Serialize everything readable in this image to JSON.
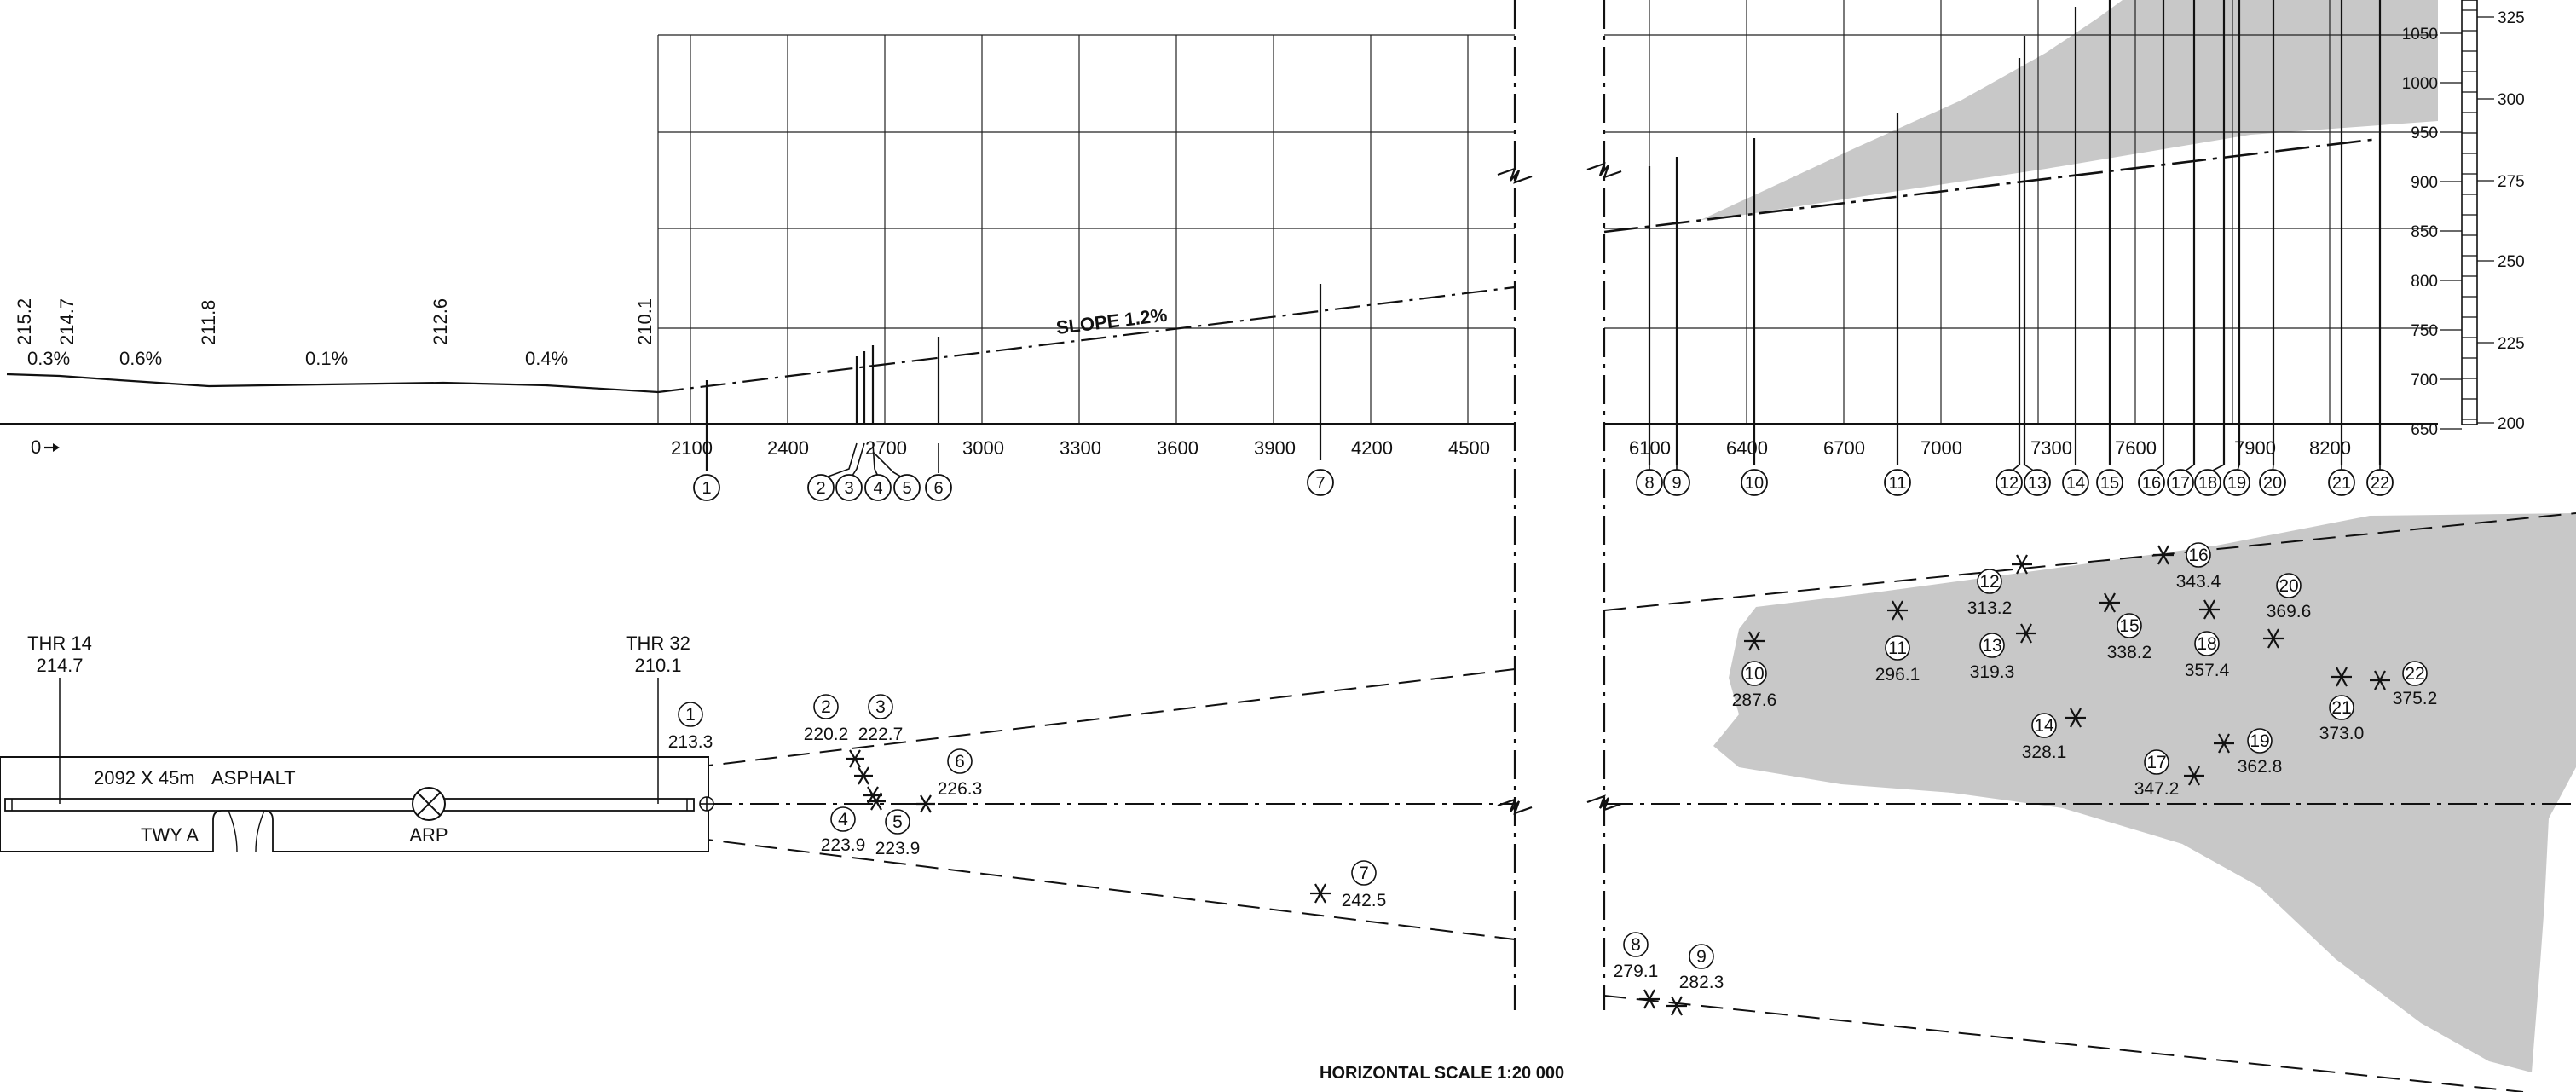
{
  "slope_label": "SLOPE 1.2%",
  "zero_label": "0",
  "scale_label": "HORIZONTAL SCALE 1:20 000",
  "profile_left": {
    "elevations": [
      "215.2",
      "214.7",
      "211.8",
      "212.6",
      "210.1"
    ],
    "gradients": [
      "0.3%",
      "0.6%",
      "0.1%",
      "0.4%"
    ]
  },
  "distance_ticks_left": [
    "2100",
    "2400",
    "2700",
    "3000",
    "3300",
    "3600",
    "3900",
    "4200",
    "4500"
  ],
  "distance_ticks_right": [
    "6100",
    "6400",
    "6700",
    "7000",
    "7300",
    "7600",
    "7900",
    "8200"
  ],
  "obstacle_numbers": [
    "1",
    "2",
    "3",
    "4",
    "5",
    "6",
    "7",
    "8",
    "9",
    "10",
    "11",
    "12",
    "13",
    "14",
    "15",
    "16",
    "17",
    "18",
    "19",
    "20",
    "21",
    "22"
  ],
  "height_scale": {
    "feet": [
      "1050",
      "1000",
      "950",
      "900",
      "850",
      "800",
      "750",
      "700",
      "650"
    ],
    "metres": [
      "325",
      "300",
      "275",
      "250",
      "225",
      "200"
    ]
  },
  "runway": {
    "thr14_label": "THR 14",
    "thr14_elev": "214.7",
    "thr32_label": "THR 32",
    "thr32_elev": "210.1",
    "dimensions": "2092 X 45m",
    "surface": "ASPHALT",
    "taxiway": "TWY A",
    "arp": "ARP"
  },
  "obstacles_plan": [
    {
      "n": "1",
      "elev": "213.3"
    },
    {
      "n": "2",
      "elev": "220.2"
    },
    {
      "n": "3",
      "elev": "222.7"
    },
    {
      "n": "4",
      "elev": "223.9"
    },
    {
      "n": "5",
      "elev": "223.9"
    },
    {
      "n": "6",
      "elev": "226.3"
    },
    {
      "n": "7",
      "elev": "242.5"
    },
    {
      "n": "8",
      "elev": "279.1"
    },
    {
      "n": "9",
      "elev": "282.3"
    },
    {
      "n": "10",
      "elev": "287.6"
    },
    {
      "n": "11",
      "elev": "296.1"
    },
    {
      "n": "12",
      "elev": "313.2"
    },
    {
      "n": "13",
      "elev": "319.3"
    },
    {
      "n": "14",
      "elev": "328.1"
    },
    {
      "n": "15",
      "elev": "338.2"
    },
    {
      "n": "16",
      "elev": "343.4"
    },
    {
      "n": "17",
      "elev": "347.2"
    },
    {
      "n": "18",
      "elev": "357.4"
    },
    {
      "n": "19",
      "elev": "362.8"
    },
    {
      "n": "20",
      "elev": "369.6"
    },
    {
      "n": "21",
      "elev": "373.0"
    },
    {
      "n": "22",
      "elev": "375.2"
    }
  ],
  "colors": {
    "terrain": "#c8c8c8",
    "line": "#111111"
  }
}
